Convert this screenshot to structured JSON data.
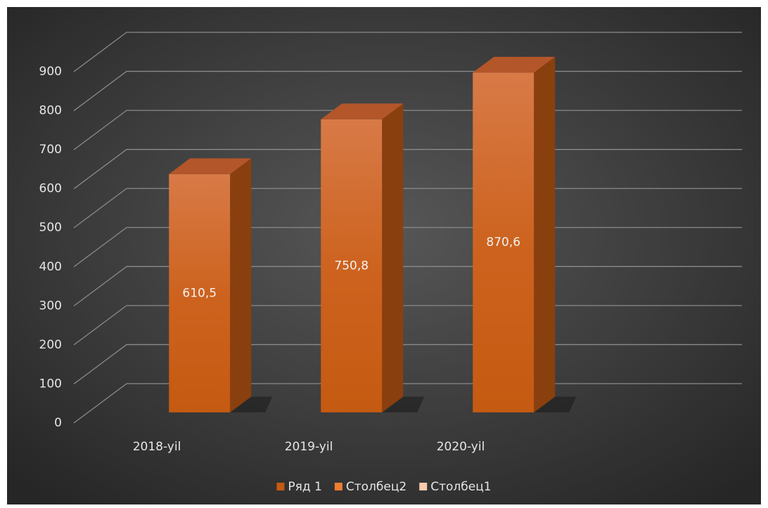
{
  "chart_data": {
    "type": "bar3d",
    "categories": [
      "2018-yil",
      "2019-yil",
      "2020-yil"
    ],
    "series": [
      {
        "name": "Ряд 1",
        "color": "#c55a11",
        "values": [
          610.5,
          750.8,
          870.6
        ],
        "value_labels": [
          "610,5",
          "750,8",
          "870,6"
        ]
      },
      {
        "name": "Столбец2",
        "color": "#ed7d31",
        "values": [
          null,
          null,
          null
        ]
      },
      {
        "name": "Столбец1",
        "color": "#f8cbad",
        "values": [
          null,
          null,
          null
        ]
      }
    ],
    "ylim": [
      0,
      900
    ],
    "yticks": [
      0,
      100,
      200,
      300,
      400,
      500,
      600,
      700,
      800,
      900
    ],
    "grid": true,
    "legend": "bottom"
  }
}
